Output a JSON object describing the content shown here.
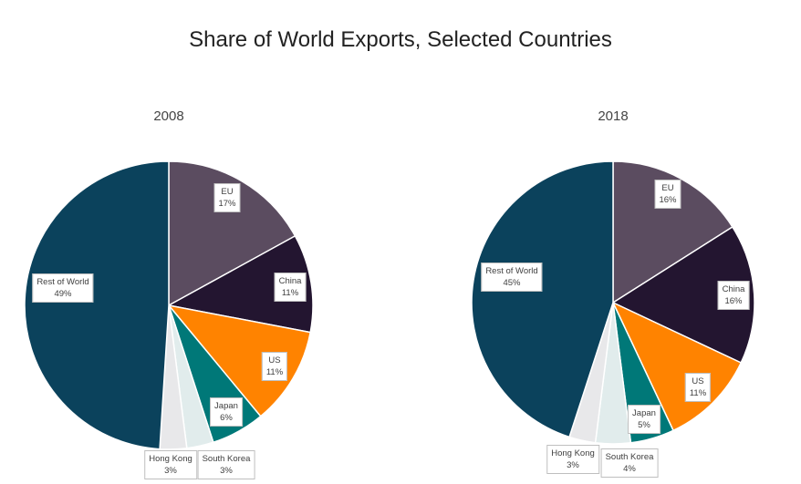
{
  "chart_data": {
    "title": "Share of World Exports, Selected Countries",
    "type": "pie",
    "categories": [
      "EU",
      "China",
      "US",
      "Japan",
      "South Korea",
      "Hong Kong",
      "Rest of World"
    ],
    "colors": [
      "#5b4c60",
      "#231530",
      "#ff8300",
      "#007878",
      "#e1ecec",
      "#e8e8ea",
      "#0b425c"
    ],
    "charts": [
      {
        "subtitle": "2008",
        "values": [
          17,
          11,
          11,
          6,
          3,
          3,
          49
        ],
        "labels": [
          "17%",
          "11%",
          "11%",
          "6%",
          "3%",
          "3%",
          "49%"
        ]
      },
      {
        "subtitle": "2018",
        "values": [
          16,
          16,
          11,
          5,
          4,
          3,
          45
        ],
        "labels": [
          "16%",
          "16%",
          "11%",
          "5%",
          "4%",
          "3%",
          "45%"
        ]
      }
    ]
  }
}
